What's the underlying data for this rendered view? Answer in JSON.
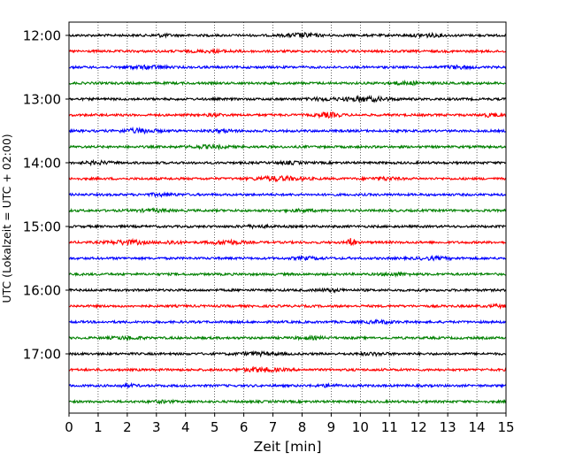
{
  "chart_data": {
    "type": "line",
    "title": "",
    "xlabel": "Zeit  [min]",
    "ylabel": "UTC (Lokalzeit = UTC + 02:00)",
    "xlim": [
      0,
      15
    ],
    "x_ticks": [
      "0",
      "1",
      "2",
      "3",
      "4",
      "5",
      "6",
      "7",
      "8",
      "9",
      "10",
      "11",
      "12",
      "13",
      "14",
      "15"
    ],
    "y_ticks": [
      "12:00",
      "13:00",
      "14:00",
      "15:00",
      "16:00",
      "17:00"
    ],
    "grid": "vertical dotted",
    "trace_colors": [
      "#000000",
      "#ff0000",
      "#0000ff",
      "#008000"
    ],
    "series": [
      {
        "start": "12:00",
        "color": "#000000",
        "events": [
          {
            "x": 8.0,
            "amp": 2.0,
            "width": 0.5
          },
          {
            "x": 12.3,
            "amp": 1.3,
            "width": 0.5
          },
          {
            "x": 3.2,
            "amp": 1.0,
            "width": 0.3
          }
        ]
      },
      {
        "start": "12:15",
        "color": "#ff0000",
        "events": [
          {
            "x": 5.0,
            "amp": 0.8,
            "width": 0.8
          }
        ]
      },
      {
        "start": "12:30",
        "color": "#0000ff",
        "events": [
          {
            "x": 2.4,
            "amp": 1.2,
            "width": 0.6
          },
          {
            "x": 13.3,
            "amp": 1.2,
            "width": 0.5
          },
          {
            "x": 3.1,
            "amp": 1.0,
            "width": 0.3
          }
        ]
      },
      {
        "start": "12:45",
        "color": "#008000",
        "events": [
          {
            "x": 11.5,
            "amp": 1.2,
            "width": 0.6
          }
        ]
      },
      {
        "start": "13:00",
        "color": "#000000",
        "events": [
          {
            "x": 10.2,
            "amp": 2.0,
            "width": 0.8
          },
          {
            "x": 8.7,
            "amp": 1.0,
            "width": 0.5
          }
        ]
      },
      {
        "start": "13:15",
        "color": "#ff0000",
        "events": [
          {
            "x": 8.9,
            "amp": 2.2,
            "width": 0.4
          },
          {
            "x": 14.5,
            "amp": 1.5,
            "width": 0.3
          },
          {
            "x": 5.0,
            "amp": 1.0,
            "width": 0.3
          }
        ]
      },
      {
        "start": "13:30",
        "color": "#0000ff",
        "events": [
          {
            "x": 2.4,
            "amp": 2.0,
            "width": 0.6
          },
          {
            "x": 5.3,
            "amp": 1.0,
            "width": 0.4
          }
        ]
      },
      {
        "start": "13:45",
        "color": "#008000",
        "events": [
          {
            "x": 4.8,
            "amp": 1.2,
            "width": 0.7
          }
        ]
      },
      {
        "start": "14:00",
        "color": "#000000",
        "events": [
          {
            "x": 1.0,
            "amp": 1.2,
            "width": 0.5
          },
          {
            "x": 7.6,
            "amp": 1.0,
            "width": 0.4
          }
        ]
      },
      {
        "start": "14:15",
        "color": "#ff0000",
        "events": [
          {
            "x": 7.2,
            "amp": 2.0,
            "width": 0.8
          },
          {
            "x": 10.8,
            "amp": 1.2,
            "width": 0.5
          }
        ]
      },
      {
        "start": "14:30",
        "color": "#0000ff",
        "events": [
          {
            "x": 3.2,
            "amp": 1.0,
            "width": 0.5
          }
        ]
      },
      {
        "start": "14:45",
        "color": "#008000",
        "events": [
          {
            "x": 2.9,
            "amp": 1.0,
            "width": 0.6
          },
          {
            "x": 8.0,
            "amp": 0.8,
            "width": 0.5
          }
        ]
      },
      {
        "start": "15:00",
        "color": "#000000",
        "events": [
          {
            "x": 6.4,
            "amp": 0.9,
            "width": 0.5
          }
        ]
      },
      {
        "start": "15:15",
        "color": "#ff0000",
        "events": [
          {
            "x": 9.7,
            "amp": 5.5,
            "width": 0.12
          },
          {
            "x": 2.0,
            "amp": 2.0,
            "width": 0.6
          },
          {
            "x": 5.4,
            "amp": 2.0,
            "width": 0.5
          },
          {
            "x": 3.5,
            "amp": 1.5,
            "width": 0.3
          }
        ]
      },
      {
        "start": "15:30",
        "color": "#0000ff",
        "events": [
          {
            "x": 8.2,
            "amp": 1.0,
            "width": 0.5
          },
          {
            "x": 12.5,
            "amp": 1.0,
            "width": 0.6
          }
        ]
      },
      {
        "start": "15:45",
        "color": "#008000",
        "events": [
          {
            "x": 11.2,
            "amp": 1.1,
            "width": 0.5
          }
        ]
      },
      {
        "start": "16:00",
        "color": "#000000",
        "events": [
          {
            "x": 9.0,
            "amp": 0.9,
            "width": 0.5
          }
        ]
      },
      {
        "start": "16:15",
        "color": "#ff0000",
        "events": [
          {
            "x": 14.7,
            "amp": 1.0,
            "width": 0.3
          }
        ]
      },
      {
        "start": "16:30",
        "color": "#0000ff",
        "events": [
          {
            "x": 10.7,
            "amp": 1.2,
            "width": 0.5
          }
        ]
      },
      {
        "start": "16:45",
        "color": "#008000",
        "events": [
          {
            "x": 2.0,
            "amp": 1.2,
            "width": 0.5
          },
          {
            "x": 8.3,
            "amp": 0.9,
            "width": 0.5
          }
        ]
      },
      {
        "start": "17:00",
        "color": "#000000",
        "events": [
          {
            "x": 6.5,
            "amp": 1.3,
            "width": 0.7
          },
          {
            "x": 10.5,
            "amp": 1.0,
            "width": 0.5
          }
        ]
      },
      {
        "start": "17:15",
        "color": "#ff0000",
        "events": [
          {
            "x": 6.6,
            "amp": 1.8,
            "width": 0.7
          }
        ]
      },
      {
        "start": "17:30",
        "color": "#0000ff",
        "events": [
          {
            "x": 2.0,
            "amp": 1.0,
            "width": 0.4
          },
          {
            "x": 8.9,
            "amp": 1.0,
            "width": 0.4
          }
        ]
      },
      {
        "start": "17:45",
        "color": "#008000",
        "events": [
          {
            "x": 3.2,
            "amp": 0.8,
            "width": 0.4
          }
        ]
      }
    ]
  }
}
